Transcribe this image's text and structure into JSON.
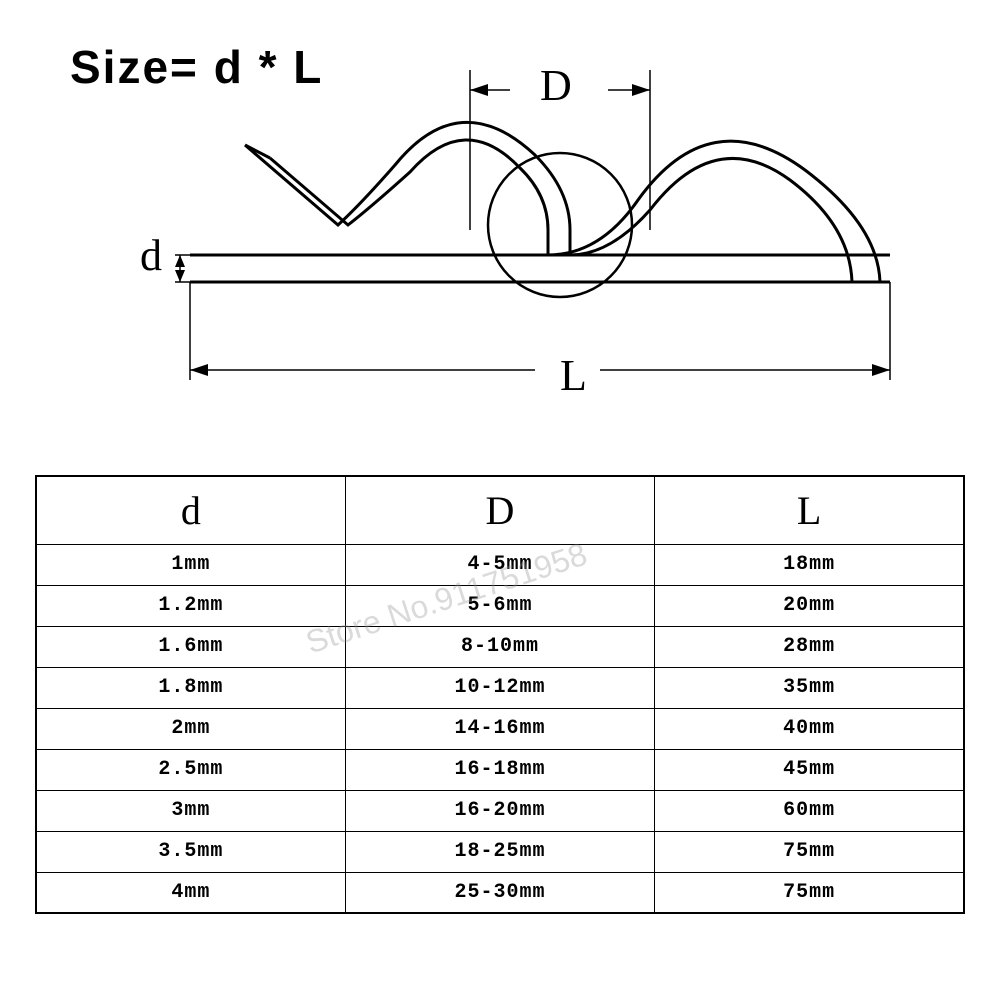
{
  "title": "Size= d * L",
  "diagram": {
    "labels": {
      "D": "D",
      "d": "d",
      "L": "L"
    },
    "stroke_color": "#000000",
    "stroke_width_shape": 3,
    "stroke_width_dim": 1.5,
    "background": "#ffffff"
  },
  "watermark": "Store No.911751958",
  "table": {
    "columns": [
      "d",
      "D",
      "L"
    ],
    "rows": [
      [
        "1mm",
        "4-5mm",
        "18mm"
      ],
      [
        "1.2mm",
        "5-6mm",
        "20mm"
      ],
      [
        "1.6mm",
        "8-10mm",
        "28mm"
      ],
      [
        "1.8mm",
        "10-12mm",
        "35mm"
      ],
      [
        "2mm",
        "14-16mm",
        "40mm"
      ],
      [
        "2.5mm",
        "16-18mm",
        "45mm"
      ],
      [
        "3mm",
        "16-20mm",
        "60mm"
      ],
      [
        "3.5mm",
        "18-25mm",
        "75mm"
      ],
      [
        "4mm",
        "25-30mm",
        "75mm"
      ]
    ],
    "header_fontsize": 40,
    "cell_fontsize": 20,
    "border_color": "#000000",
    "col_widths": [
      "33.3%",
      "33.3%",
      "33.4%"
    ]
  }
}
